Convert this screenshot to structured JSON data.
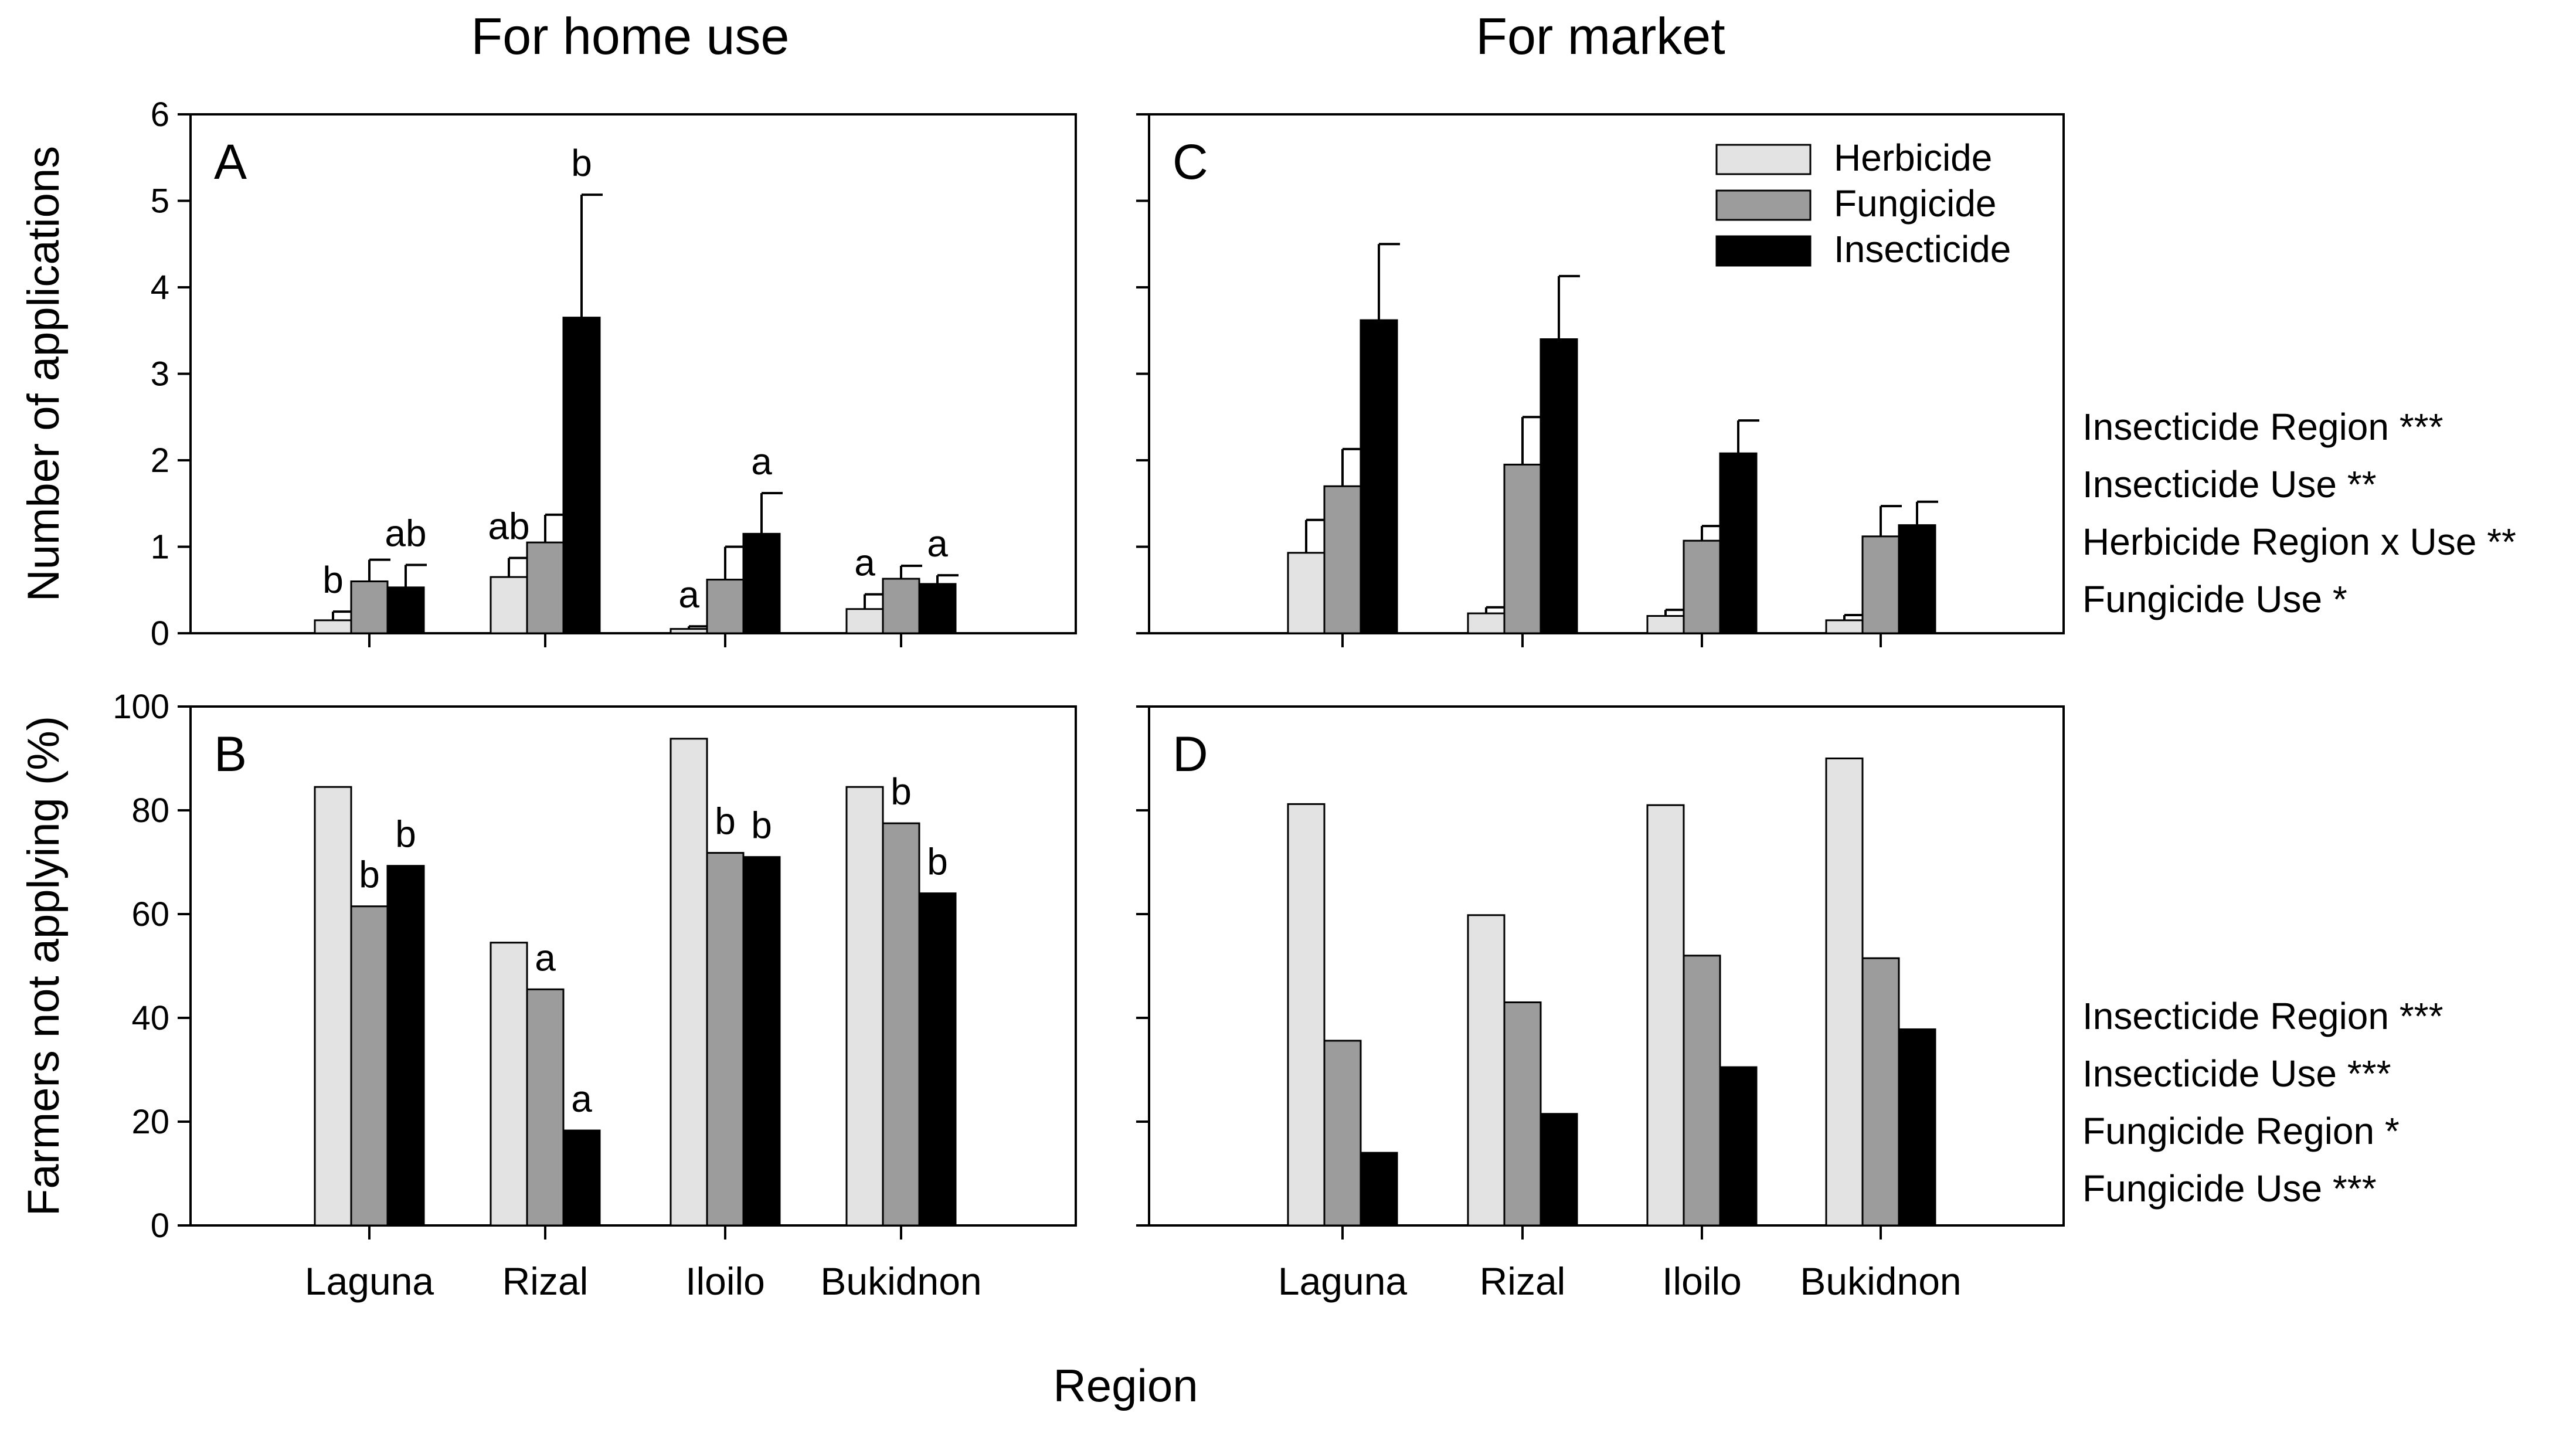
{
  "figure": {
    "column_titles": [
      "For home use",
      "For market"
    ],
    "x_axis_label": "Region"
  },
  "colors": {
    "herbicide": "#e3e3e3",
    "fungicide": "#9c9c9c",
    "insecticide": "#000000"
  },
  "chart_data": [
    {
      "panel": "A",
      "type": "bar",
      "column": "For home use",
      "ylabel": "Number of applications",
      "ylim": [
        0,
        6
      ],
      "yticks": [
        "0",
        "1",
        "2",
        "3",
        "4",
        "5",
        "6"
      ],
      "categories": [
        "Laguna",
        "Rizal",
        "Iloilo",
        "Bukidnon"
      ],
      "show_xticklabels": false,
      "series": [
        {
          "name": "Herbicide",
          "values": [
            0.15,
            0.65,
            0.05,
            0.28
          ],
          "errors": [
            0.1,
            0.22,
            0.03,
            0.17
          ]
        },
        {
          "name": "Fungicide",
          "values": [
            0.6,
            1.05,
            0.62,
            0.63
          ],
          "errors": [
            0.25,
            0.32,
            0.38,
            0.15
          ]
        },
        {
          "name": "Insecticide",
          "values": [
            0.53,
            3.65,
            1.15,
            0.57
          ],
          "errors": [
            0.26,
            1.42,
            0.47,
            0.1
          ]
        }
      ],
      "significance_letters": [
        {
          "category": "Laguna",
          "series": "Herbicide",
          "label": "b"
        },
        {
          "category": "Laguna",
          "series": "Insecticide",
          "label": "ab"
        },
        {
          "category": "Rizal",
          "series": "Herbicide",
          "label": "ab"
        },
        {
          "category": "Rizal",
          "series": "Insecticide",
          "label": "b"
        },
        {
          "category": "Iloilo",
          "series": "Herbicide",
          "label": "a"
        },
        {
          "category": "Iloilo",
          "series": "Insecticide",
          "label": "a"
        },
        {
          "category": "Bukidnon",
          "series": "Herbicide",
          "label": "a"
        },
        {
          "category": "Bukidnon",
          "series": "Insecticide",
          "label": "a"
        }
      ]
    },
    {
      "panel": "B",
      "type": "bar",
      "column": "For home use",
      "ylabel": "Farmers not applying (%)",
      "ylim": [
        0,
        100
      ],
      "yticks": [
        "0",
        "20",
        "40",
        "60",
        "80",
        "100"
      ],
      "categories": [
        "Laguna",
        "Rizal",
        "Iloilo",
        "Bukidnon"
      ],
      "show_xticklabels": true,
      "series": [
        {
          "name": "Herbicide",
          "values": [
            84.5,
            54.5,
            93.8,
            84.5
          ]
        },
        {
          "name": "Fungicide",
          "values": [
            61.5,
            45.5,
            71.8,
            77.5
          ]
        },
        {
          "name": "Insecticide",
          "values": [
            69.3,
            18.3,
            71.0,
            64.0
          ]
        }
      ],
      "significance_letters": [
        {
          "category": "Laguna",
          "series": "Fungicide",
          "label": "b"
        },
        {
          "category": "Laguna",
          "series": "Insecticide",
          "label": "b"
        },
        {
          "category": "Rizal",
          "series": "Fungicide",
          "label": "a"
        },
        {
          "category": "Rizal",
          "series": "Insecticide",
          "label": "a"
        },
        {
          "category": "Iloilo",
          "series": "Fungicide",
          "label": "b"
        },
        {
          "category": "Iloilo",
          "series": "Insecticide",
          "label": "b"
        },
        {
          "category": "Bukidnon",
          "series": "Fungicide",
          "label": "b"
        },
        {
          "category": "Bukidnon",
          "series": "Insecticide",
          "label": "b"
        }
      ]
    },
    {
      "panel": "C",
      "type": "bar",
      "column": "For market",
      "ylabel": "",
      "ylim": [
        0,
        6
      ],
      "categories": [
        "Laguna",
        "Rizal",
        "Iloilo",
        "Bukidnon"
      ],
      "show_xticklabels": false,
      "legend": {
        "placement": "top-right",
        "entries": [
          "Herbicide",
          "Fungicide",
          "Insecticide"
        ]
      },
      "series": [
        {
          "name": "Herbicide",
          "values": [
            0.93,
            0.23,
            0.2,
            0.15
          ],
          "errors": [
            0.38,
            0.07,
            0.07,
            0.06
          ]
        },
        {
          "name": "Fungicide",
          "values": [
            1.7,
            1.95,
            1.07,
            1.12
          ],
          "errors": [
            0.43,
            0.55,
            0.17,
            0.35
          ]
        },
        {
          "name": "Insecticide",
          "values": [
            3.62,
            3.4,
            2.08,
            1.25
          ],
          "errors": [
            0.88,
            0.73,
            0.38,
            0.27
          ]
        }
      ],
      "statistics": [
        "Insecticide Region ***",
        "Insecticide Use **",
        "Herbicide Region x Use **",
        "Fungicide Use *"
      ]
    },
    {
      "panel": "D",
      "type": "bar",
      "column": "For market",
      "ylabel": "",
      "ylim": [
        0,
        100
      ],
      "categories": [
        "Laguna",
        "Rizal",
        "Iloilo",
        "Bukidnon"
      ],
      "show_xticklabels": true,
      "series": [
        {
          "name": "Herbicide",
          "values": [
            81.2,
            59.8,
            81.0,
            90.0
          ]
        },
        {
          "name": "Fungicide",
          "values": [
            35.6,
            43.0,
            52.0,
            51.5
          ]
        },
        {
          "name": "Insecticide",
          "values": [
            14.0,
            21.5,
            30.5,
            37.8
          ]
        }
      ],
      "statistics": [
        "Insecticide Region ***",
        "Insecticide Use ***",
        "Fungicide Region *",
        "Fungicide Use ***"
      ]
    }
  ]
}
